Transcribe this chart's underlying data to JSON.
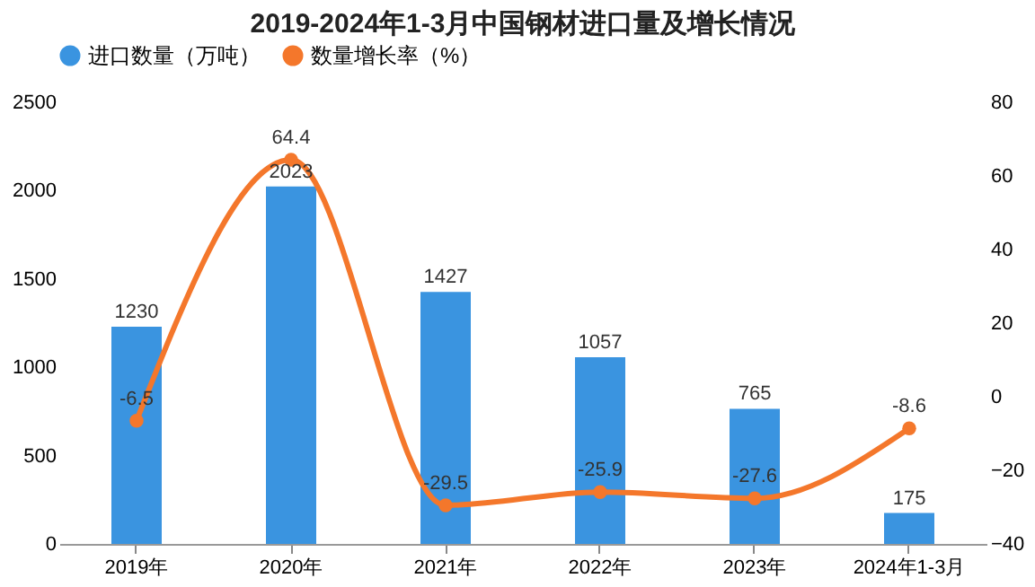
{
  "chart_data": {
    "type": "bar",
    "title": "2019-2024年1-3月中国钢材进口量及增长情况",
    "categories": [
      "2019年",
      "2020年",
      "2021年",
      "2022年",
      "2023年",
      "2024年1-3月"
    ],
    "series": [
      {
        "name": "进口数量（万吨）",
        "color": "#3a94e0",
        "values": [
          1230,
          2023,
          1427,
          1057,
          765,
          175
        ]
      },
      {
        "name": "数量增长率（%）",
        "type": "line",
        "axis": "y2",
        "color": "#f4772b",
        "values": [
          -6.5,
          64.4,
          -29.5,
          -25.9,
          -27.6,
          -8.6
        ]
      }
    ],
    "ylim": [
      0,
      2500
    ],
    "yticks": [
      0,
      500,
      1000,
      1500,
      2000,
      2500
    ],
    "y2lim": [
      -40,
      80
    ],
    "y2ticks": [
      -40,
      -20,
      0,
      20,
      40,
      60,
      80
    ],
    "data_labels": true,
    "legend": "top",
    "marker": "circle",
    "grid": false
  }
}
